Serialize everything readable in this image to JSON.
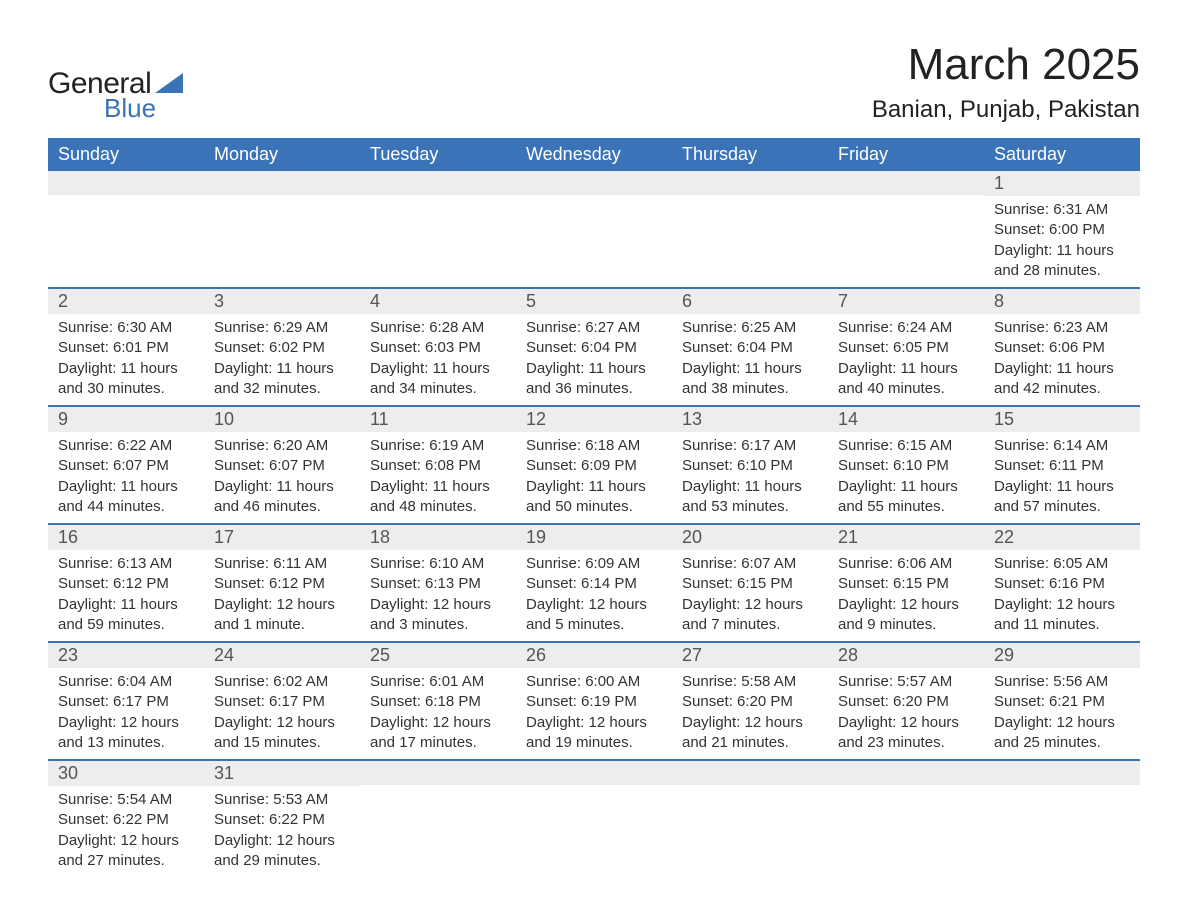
{
  "brand": {
    "general": "General",
    "blue": "Blue"
  },
  "title": "March 2025",
  "location": "Banian, Punjab, Pakistan",
  "colors": {
    "header_bg": "#3b73b9",
    "header_text": "#ffffff",
    "daynum_bg": "#ededed",
    "row_divider": "#3b73b9",
    "body_text": "#333333",
    "logo_blue": "#3b73b9"
  },
  "layout": {
    "columns": 7,
    "font_family": "Arial",
    "title_fontsize_pt": 33,
    "location_fontsize_pt": 18,
    "header_fontsize_pt": 14,
    "cell_fontsize_pt": 11
  },
  "weekday_headers": [
    "Sunday",
    "Monday",
    "Tuesday",
    "Wednesday",
    "Thursday",
    "Friday",
    "Saturday"
  ],
  "weeks": [
    [
      null,
      null,
      null,
      null,
      null,
      null,
      {
        "day": "1",
        "sunrise": "Sunrise: 6:31 AM",
        "sunset": "Sunset: 6:00 PM",
        "daylight1": "Daylight: 11 hours",
        "daylight2": "and 28 minutes."
      }
    ],
    [
      {
        "day": "2",
        "sunrise": "Sunrise: 6:30 AM",
        "sunset": "Sunset: 6:01 PM",
        "daylight1": "Daylight: 11 hours",
        "daylight2": "and 30 minutes."
      },
      {
        "day": "3",
        "sunrise": "Sunrise: 6:29 AM",
        "sunset": "Sunset: 6:02 PM",
        "daylight1": "Daylight: 11 hours",
        "daylight2": "and 32 minutes."
      },
      {
        "day": "4",
        "sunrise": "Sunrise: 6:28 AM",
        "sunset": "Sunset: 6:03 PM",
        "daylight1": "Daylight: 11 hours",
        "daylight2": "and 34 minutes."
      },
      {
        "day": "5",
        "sunrise": "Sunrise: 6:27 AM",
        "sunset": "Sunset: 6:04 PM",
        "daylight1": "Daylight: 11 hours",
        "daylight2": "and 36 minutes."
      },
      {
        "day": "6",
        "sunrise": "Sunrise: 6:25 AM",
        "sunset": "Sunset: 6:04 PM",
        "daylight1": "Daylight: 11 hours",
        "daylight2": "and 38 minutes."
      },
      {
        "day": "7",
        "sunrise": "Sunrise: 6:24 AM",
        "sunset": "Sunset: 6:05 PM",
        "daylight1": "Daylight: 11 hours",
        "daylight2": "and 40 minutes."
      },
      {
        "day": "8",
        "sunrise": "Sunrise: 6:23 AM",
        "sunset": "Sunset: 6:06 PM",
        "daylight1": "Daylight: 11 hours",
        "daylight2": "and 42 minutes."
      }
    ],
    [
      {
        "day": "9",
        "sunrise": "Sunrise: 6:22 AM",
        "sunset": "Sunset: 6:07 PM",
        "daylight1": "Daylight: 11 hours",
        "daylight2": "and 44 minutes."
      },
      {
        "day": "10",
        "sunrise": "Sunrise: 6:20 AM",
        "sunset": "Sunset: 6:07 PM",
        "daylight1": "Daylight: 11 hours",
        "daylight2": "and 46 minutes."
      },
      {
        "day": "11",
        "sunrise": "Sunrise: 6:19 AM",
        "sunset": "Sunset: 6:08 PM",
        "daylight1": "Daylight: 11 hours",
        "daylight2": "and 48 minutes."
      },
      {
        "day": "12",
        "sunrise": "Sunrise: 6:18 AM",
        "sunset": "Sunset: 6:09 PM",
        "daylight1": "Daylight: 11 hours",
        "daylight2": "and 50 minutes."
      },
      {
        "day": "13",
        "sunrise": "Sunrise: 6:17 AM",
        "sunset": "Sunset: 6:10 PM",
        "daylight1": "Daylight: 11 hours",
        "daylight2": "and 53 minutes."
      },
      {
        "day": "14",
        "sunrise": "Sunrise: 6:15 AM",
        "sunset": "Sunset: 6:10 PM",
        "daylight1": "Daylight: 11 hours",
        "daylight2": "and 55 minutes."
      },
      {
        "day": "15",
        "sunrise": "Sunrise: 6:14 AM",
        "sunset": "Sunset: 6:11 PM",
        "daylight1": "Daylight: 11 hours",
        "daylight2": "and 57 minutes."
      }
    ],
    [
      {
        "day": "16",
        "sunrise": "Sunrise: 6:13 AM",
        "sunset": "Sunset: 6:12 PM",
        "daylight1": "Daylight: 11 hours",
        "daylight2": "and 59 minutes."
      },
      {
        "day": "17",
        "sunrise": "Sunrise: 6:11 AM",
        "sunset": "Sunset: 6:12 PM",
        "daylight1": "Daylight: 12 hours",
        "daylight2": "and 1 minute."
      },
      {
        "day": "18",
        "sunrise": "Sunrise: 6:10 AM",
        "sunset": "Sunset: 6:13 PM",
        "daylight1": "Daylight: 12 hours",
        "daylight2": "and 3 minutes."
      },
      {
        "day": "19",
        "sunrise": "Sunrise: 6:09 AM",
        "sunset": "Sunset: 6:14 PM",
        "daylight1": "Daylight: 12 hours",
        "daylight2": "and 5 minutes."
      },
      {
        "day": "20",
        "sunrise": "Sunrise: 6:07 AM",
        "sunset": "Sunset: 6:15 PM",
        "daylight1": "Daylight: 12 hours",
        "daylight2": "and 7 minutes."
      },
      {
        "day": "21",
        "sunrise": "Sunrise: 6:06 AM",
        "sunset": "Sunset: 6:15 PM",
        "daylight1": "Daylight: 12 hours",
        "daylight2": "and 9 minutes."
      },
      {
        "day": "22",
        "sunrise": "Sunrise: 6:05 AM",
        "sunset": "Sunset: 6:16 PM",
        "daylight1": "Daylight: 12 hours",
        "daylight2": "and 11 minutes."
      }
    ],
    [
      {
        "day": "23",
        "sunrise": "Sunrise: 6:04 AM",
        "sunset": "Sunset: 6:17 PM",
        "daylight1": "Daylight: 12 hours",
        "daylight2": "and 13 minutes."
      },
      {
        "day": "24",
        "sunrise": "Sunrise: 6:02 AM",
        "sunset": "Sunset: 6:17 PM",
        "daylight1": "Daylight: 12 hours",
        "daylight2": "and 15 minutes."
      },
      {
        "day": "25",
        "sunrise": "Sunrise: 6:01 AM",
        "sunset": "Sunset: 6:18 PM",
        "daylight1": "Daylight: 12 hours",
        "daylight2": "and 17 minutes."
      },
      {
        "day": "26",
        "sunrise": "Sunrise: 6:00 AM",
        "sunset": "Sunset: 6:19 PM",
        "daylight1": "Daylight: 12 hours",
        "daylight2": "and 19 minutes."
      },
      {
        "day": "27",
        "sunrise": "Sunrise: 5:58 AM",
        "sunset": "Sunset: 6:20 PM",
        "daylight1": "Daylight: 12 hours",
        "daylight2": "and 21 minutes."
      },
      {
        "day": "28",
        "sunrise": "Sunrise: 5:57 AM",
        "sunset": "Sunset: 6:20 PM",
        "daylight1": "Daylight: 12 hours",
        "daylight2": "and 23 minutes."
      },
      {
        "day": "29",
        "sunrise": "Sunrise: 5:56 AM",
        "sunset": "Sunset: 6:21 PM",
        "daylight1": "Daylight: 12 hours",
        "daylight2": "and 25 minutes."
      }
    ],
    [
      {
        "day": "30",
        "sunrise": "Sunrise: 5:54 AM",
        "sunset": "Sunset: 6:22 PM",
        "daylight1": "Daylight: 12 hours",
        "daylight2": "and 27 minutes."
      },
      {
        "day": "31",
        "sunrise": "Sunrise: 5:53 AM",
        "sunset": "Sunset: 6:22 PM",
        "daylight1": "Daylight: 12 hours",
        "daylight2": "and 29 minutes."
      },
      null,
      null,
      null,
      null,
      null
    ]
  ]
}
